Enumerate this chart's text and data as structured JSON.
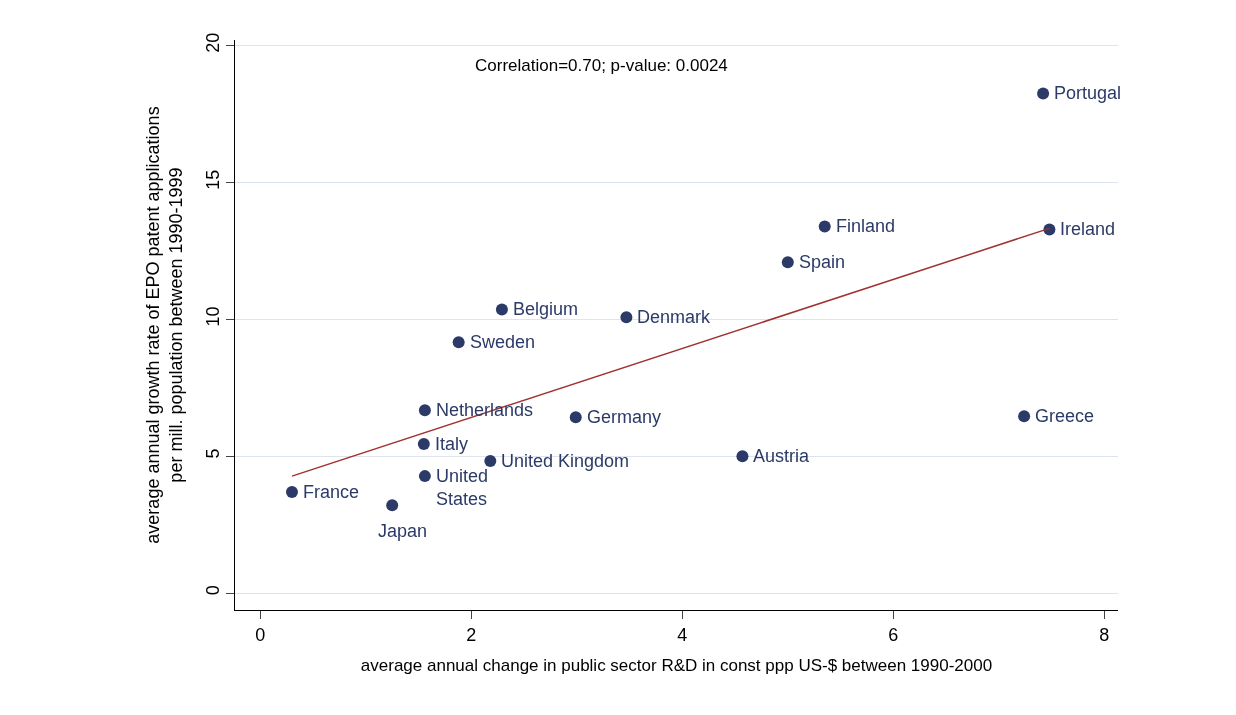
{
  "chart_data": {
    "type": "scatter",
    "xlabel": "average annual change in public sector R&D in const ppp US-$ between 1990-2000",
    "ylabel": "average annual growth rate of EPO patent applications\nper mill. population between 1990-1999",
    "x": [
      0.3,
      1.25,
      1.56,
      1.55,
      1.56,
      1.88,
      2.29,
      2.18,
      2.99,
      3.47,
      4.57,
      5.0,
      5.35,
      7.48,
      7.42,
      7.24
    ],
    "series": [
      {
        "color": "#2b3a67",
        "values": [
          3.69,
          3.21,
          4.27,
          5.44,
          6.68,
          9.16,
          10.36,
          4.82,
          6.42,
          10.07,
          5.0,
          12.08,
          13.39,
          13.28,
          18.25,
          6.46
        ]
      },
      {
        "type": "line",
        "color": "#a0312f",
        "x": [
          0.3,
          7.48
        ],
        "values": [
          4.27,
          13.32
        ],
        "marker": "none"
      }
    ],
    "annotations": [
      "Correlation=0.70; p-value: 0.0024",
      {
        "text": "France",
        "x": 0.3,
        "y": 3.69
      },
      {
        "text": "Japan",
        "x": 1.25,
        "y": 3.21
      },
      {
        "text": "United\nStates",
        "x": 1.56,
        "y": 4.27
      },
      {
        "text": "Italy",
        "x": 1.55,
        "y": 5.44
      },
      {
        "text": "Netherlands",
        "x": 1.56,
        "y": 6.68
      },
      {
        "text": "Sweden",
        "x": 1.88,
        "y": 9.16
      },
      {
        "text": "Belgium",
        "x": 2.29,
        "y": 10.36
      },
      {
        "text": "United Kingdom",
        "x": 2.18,
        "y": 4.82
      },
      {
        "text": "Germany",
        "x": 2.99,
        "y": 6.42
      },
      {
        "text": "Denmark",
        "x": 3.47,
        "y": 10.07
      },
      {
        "text": "Austria",
        "x": 4.57,
        "y": 5.0
      },
      {
        "text": "Spain",
        "x": 5.0,
        "y": 12.08
      },
      {
        "text": "Finland",
        "x": 5.35,
        "y": 13.39
      },
      {
        "text": "Ireland",
        "x": 7.48,
        "y": 13.28
      },
      {
        "text": "Portugal",
        "x": 7.42,
        "y": 18.25
      },
      {
        "text": "Greece",
        "x": 7.24,
        "y": 6.46
      }
    ],
    "xlim": [
      -0.24,
      8.13
    ],
    "ylim": [
      -0.62,
      20.2
    ],
    "xticks": [
      0,
      2,
      4,
      6,
      8
    ],
    "yticks": [
      0,
      5,
      10,
      15,
      20
    ],
    "grid": "y",
    "marker": "circle"
  }
}
